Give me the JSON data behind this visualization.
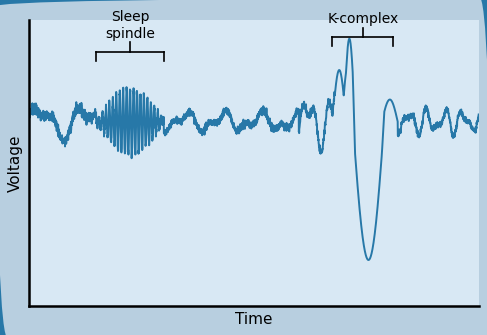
{
  "title": "",
  "xlabel": "Time",
  "ylabel": "Voltage",
  "line_color": "#2778a8",
  "line_width": 1.4,
  "ax_background_color": "#d8e8f4",
  "fig_background_color": "#b8cfe0",
  "border_color": "#2778a8",
  "sleep_spindle_label": "Sleep\nspindle",
  "k_complex_label": "K-complex",
  "annotation_fontsize": 10,
  "label_fontsize": 11
}
